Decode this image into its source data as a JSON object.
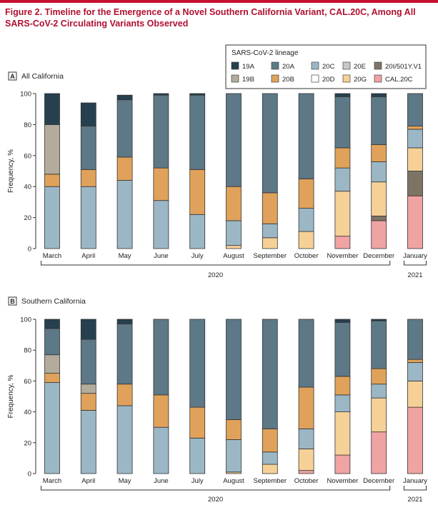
{
  "figure_title": "Figure 2. Timeline for the Emergence of a Novel Southern California Variant, CAL.20C, Among All SARS-CoV-2 Circulating Variants Observed",
  "legend": {
    "title": "SARS-CoV-2 lineage",
    "items": [
      {
        "key": "19A",
        "label": "19A",
        "color": "#26404f"
      },
      {
        "key": "20A",
        "label": "20A",
        "color": "#5d7887"
      },
      {
        "key": "20C",
        "label": "20C",
        "color": "#9bb7c6"
      },
      {
        "key": "20E",
        "label": "20E",
        "color": "#c8c8c8"
      },
      {
        "key": "20I",
        "label": "20I/501Y.V1",
        "color": "#7e7466"
      },
      {
        "key": "19B",
        "label": "19B",
        "color": "#b3ab9c"
      },
      {
        "key": "20B",
        "label": "20B",
        "color": "#e0a25a"
      },
      {
        "key": "20D",
        "label": "20D",
        "color": "#ffffff"
      },
      {
        "key": "20G",
        "label": "20G",
        "color": "#f6d197"
      },
      {
        "key": "CAL20C",
        "label": "CAL.20C",
        "color": "#f0a3a3"
      }
    ]
  },
  "chart_data": [
    {
      "type": "bar",
      "panel_letter": "A",
      "title": "All California",
      "ylabel": "Frequency, %",
      "ylim": [
        0,
        100
      ],
      "yticks": [
        "0",
        "20",
        "40",
        "60",
        "80",
        "100"
      ],
      "categories": [
        "March",
        "April",
        "May",
        "June",
        "July",
        "August",
        "September",
        "October",
        "November",
        "December",
        "January"
      ],
      "year_groups": [
        {
          "label": "2020",
          "from": 0,
          "to": 9
        },
        {
          "label": "2021",
          "from": 10,
          "to": 10
        }
      ],
      "stack_order": [
        "CAL20C",
        "20I",
        "20G",
        "20D",
        "20C",
        "20B",
        "20E",
        "19B",
        "20A",
        "19A"
      ],
      "series": [
        {
          "key": "CAL20C",
          "values": [
            0,
            0,
            0,
            0,
            0,
            0,
            0,
            0,
            8,
            18,
            34
          ]
        },
        {
          "key": "20I",
          "values": [
            0,
            0,
            0,
            0,
            0,
            0,
            0,
            0,
            0,
            3,
            16
          ]
        },
        {
          "key": "20G",
          "values": [
            0,
            0,
            0,
            0,
            0,
            2,
            7,
            11,
            29,
            22,
            15
          ]
        },
        {
          "key": "20D",
          "values": [
            0,
            0,
            0,
            0,
            0,
            0,
            0,
            0,
            0,
            0,
            0
          ]
        },
        {
          "key": "20C",
          "values": [
            40,
            40,
            44,
            31,
            22,
            16,
            9,
            15,
            15,
            13,
            12
          ]
        },
        {
          "key": "20B",
          "values": [
            8,
            11,
            15,
            21,
            29,
            22,
            20,
            19,
            13,
            11,
            2
          ]
        },
        {
          "key": "20E",
          "values": [
            0,
            0,
            0,
            0,
            0,
            0,
            0,
            0,
            0,
            0,
            0
          ]
        },
        {
          "key": "19B",
          "values": [
            32,
            0,
            0,
            0,
            0,
            0,
            0,
            0,
            0,
            0,
            0
          ]
        },
        {
          "key": "20A",
          "values": [
            0,
            28,
            37,
            47,
            48,
            60,
            64,
            55,
            33,
            31,
            21
          ]
        },
        {
          "key": "19A",
          "values": [
            20,
            15,
            3,
            1,
            1,
            0,
            0,
            0,
            2,
            2,
            0
          ]
        }
      ]
    },
    {
      "type": "bar",
      "panel_letter": "B",
      "title": "Southern California",
      "ylabel": "Frequency, %",
      "ylim": [
        0,
        100
      ],
      "yticks": [
        "0",
        "20",
        "40",
        "60",
        "80",
        "100"
      ],
      "categories": [
        "March",
        "April",
        "May",
        "June",
        "July",
        "August",
        "September",
        "October",
        "November",
        "December",
        "January"
      ],
      "year_groups": [
        {
          "label": "2020",
          "from": 0,
          "to": 9
        },
        {
          "label": "2021",
          "from": 10,
          "to": 10
        }
      ],
      "stack_order": [
        "CAL20C",
        "20I",
        "20G",
        "20D",
        "20C",
        "20B",
        "20E",
        "19B",
        "20A",
        "19A"
      ],
      "series": [
        {
          "key": "CAL20C",
          "values": [
            0,
            0,
            0,
            0,
            0,
            0,
            0,
            2,
            12,
            27,
            43
          ]
        },
        {
          "key": "20I",
          "values": [
            0,
            0,
            0,
            0,
            0,
            0,
            0,
            0,
            0,
            0,
            0
          ]
        },
        {
          "key": "20G",
          "values": [
            0,
            0,
            0,
            0,
            0,
            1,
            6,
            14,
            28,
            22,
            17
          ]
        },
        {
          "key": "20D",
          "values": [
            0,
            0,
            0,
            0,
            0,
            0,
            0,
            0,
            0,
            0,
            0
          ]
        },
        {
          "key": "20C",
          "values": [
            59,
            41,
            44,
            30,
            23,
            21,
            8,
            13,
            11,
            9,
            12
          ]
        },
        {
          "key": "20B",
          "values": [
            6,
            11,
            14,
            21,
            20,
            13,
            15,
            27,
            12,
            10,
            2
          ]
        },
        {
          "key": "20E",
          "values": [
            0,
            0,
            0,
            0,
            0,
            0,
            0,
            0,
            0,
            0,
            0
          ]
        },
        {
          "key": "19B",
          "values": [
            12,
            6,
            0,
            0,
            0,
            0,
            0,
            0,
            0,
            0,
            0
          ]
        },
        {
          "key": "20A",
          "values": [
            17,
            29,
            39,
            49,
            57,
            65,
            71,
            44,
            35,
            31,
            26
          ]
        },
        {
          "key": "19A",
          "values": [
            6,
            13,
            3,
            0,
            0,
            0,
            0,
            0,
            2,
            1,
            0
          ]
        }
      ]
    }
  ]
}
